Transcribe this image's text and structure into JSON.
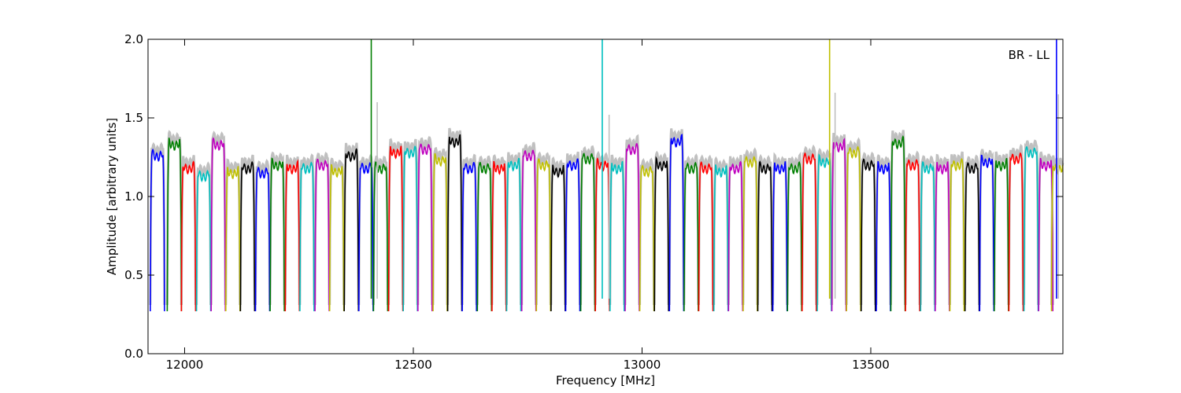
{
  "chart_data": {
    "type": "line",
    "title": "",
    "xlabel": "Frequency [MHz]",
    "ylabel": "Amplitude [arbitrary units]",
    "xlim": [
      11920,
      13920
    ],
    "ylim": [
      0.0,
      2.0
    ],
    "xticks": [
      12000,
      12500,
      13000,
      13500
    ],
    "yticks": [
      0.0,
      0.5,
      1.0,
      1.5,
      2.0
    ],
    "xtick_labels": [
      "12000",
      "12500",
      "13000",
      "13500"
    ],
    "ytick_labels": [
      "0.0",
      "0.5",
      "1.0",
      "1.5",
      "2.0"
    ],
    "annotation": "BR - LL",
    "grid": false,
    "background_color": "#c0c0c0",
    "series_colors": [
      "#0000ff",
      "#007f00",
      "#ff0000",
      "#00bfbf",
      "#bf00bf",
      "#bfbf00",
      "#000000"
    ],
    "channel_starts": [
      11925,
      11962,
      11993,
      12026,
      12058,
      12090,
      12122,
      12155,
      12187,
      12220,
      12252,
      12285,
      12317,
      12349,
      12381,
      12413,
      12446,
      12478,
      12510,
      12543,
      12575,
      12607,
      12640,
      12672,
      12704,
      12737,
      12769,
      12801,
      12833,
      12866,
      12898,
      12930,
      12963,
      12995,
      13027,
      13060,
      13092,
      13124,
      13157,
      13189,
      13221,
      13253,
      13286,
      13318,
      13350,
      13383,
      13415,
      13447,
      13479,
      13512,
      13544,
      13576,
      13609,
      13641,
      13673,
      13706,
      13738,
      13770,
      13802,
      13835,
      13867,
      13895
    ],
    "channel_width": 31,
    "channel_levels": [
      1.28,
      1.35,
      1.2,
      1.15,
      1.35,
      1.17,
      1.2,
      1.17,
      1.22,
      1.2,
      1.2,
      1.22,
      1.18,
      1.28,
      1.2,
      1.2,
      1.3,
      1.3,
      1.32,
      1.25,
      1.37,
      1.2,
      1.2,
      1.2,
      1.22,
      1.28,
      1.22,
      1.18,
      1.22,
      1.26,
      1.22,
      1.2,
      1.32,
      1.18,
      1.22,
      1.37,
      1.2,
      1.2,
      1.18,
      1.2,
      1.24,
      1.2,
      1.2,
      1.2,
      1.26,
      1.24,
      1.34,
      1.3,
      1.22,
      1.2,
      1.36,
      1.22,
      1.2,
      1.2,
      1.22,
      1.2,
      1.24,
      1.22,
      1.26,
      1.3,
      1.22,
      1.2
    ],
    "notch_min": 0.27,
    "spikes": [
      {
        "x": 12408,
        "y": 2.0,
        "color": "#007f00"
      },
      {
        "x": 12913,
        "y": 2.0,
        "color": "#00bfbf"
      },
      {
        "x": 13410,
        "y": 2.0,
        "color": "#bfbf00"
      },
      {
        "x": 13906,
        "y": 2.0,
        "color": "#0000ff"
      },
      {
        "x": 12421,
        "y": 1.6,
        "color": "#c0c0c0"
      },
      {
        "x": 12928,
        "y": 1.52,
        "color": "#c0c0c0"
      },
      {
        "x": 13422,
        "y": 1.66,
        "color": "#c0c0c0"
      },
      {
        "x": 13910,
        "y": 1.65,
        "color": "#c0c0c0"
      }
    ]
  }
}
